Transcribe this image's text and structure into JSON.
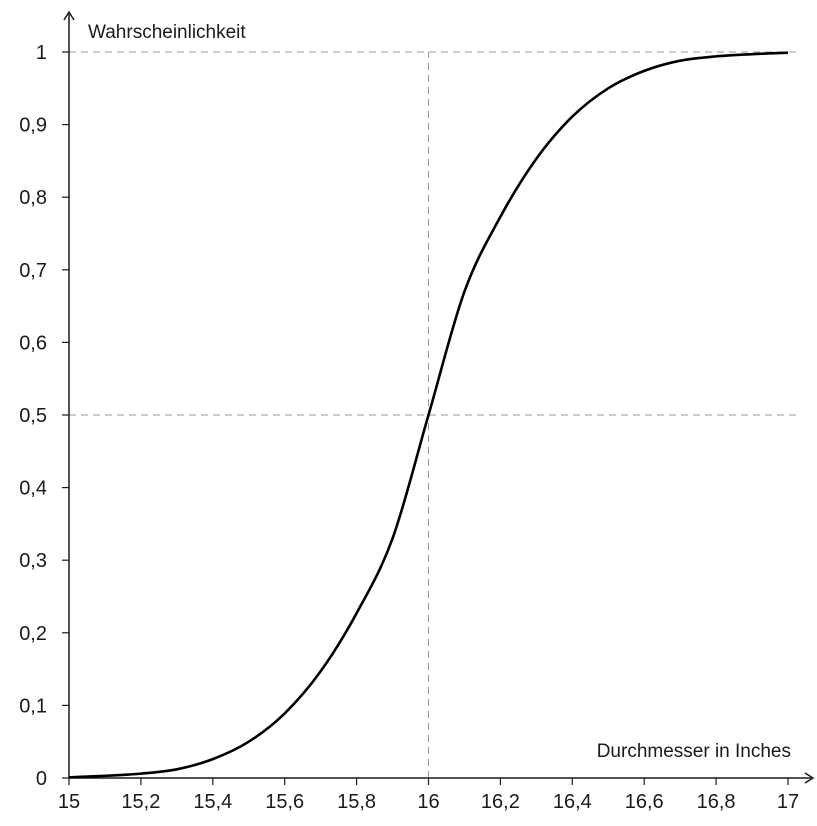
{
  "chart_data": {
    "type": "line",
    "title": "",
    "xlabel": "Durchmesser in Inches",
    "ylabel": "Wahrscheinlichkeit",
    "xlim": [
      15,
      17
    ],
    "ylim": [
      0,
      1
    ],
    "x_ticks": [
      15,
      15.2,
      15.4,
      15.6,
      15.8,
      16,
      16.2,
      16.4,
      16.6,
      16.8,
      17
    ],
    "x_tick_labels": [
      "15",
      "15,2",
      "15,4",
      "15,6",
      "15,8",
      "16",
      "16,2",
      "16,4",
      "16,6",
      "16,8",
      "17"
    ],
    "y_ticks": [
      0,
      0.1,
      0.2,
      0.3,
      0.4,
      0.5,
      0.6,
      0.7,
      0.8,
      0.9,
      1
    ],
    "y_tick_labels": [
      "0",
      "0,1",
      "0,2",
      "0,3",
      "0,4",
      "0,5",
      "0,6",
      "0,7",
      "0,8",
      "0,9",
      "1"
    ],
    "reference_lines": [
      {
        "orientation": "horizontal",
        "y": 1
      },
      {
        "orientation": "horizontal",
        "y": 0.5
      },
      {
        "orientation": "vertical",
        "x": 16
      }
    ],
    "grid": false,
    "series": [
      {
        "x": [
          15,
          15.1,
          15.2,
          15.3,
          15.4,
          15.5,
          15.6,
          15.7,
          15.8,
          15.9,
          16,
          16.1,
          16.2,
          16.3,
          16.4,
          16.5,
          16.6,
          16.7,
          16.8,
          16.9,
          17
        ],
        "values": [
          0.001,
          0.003,
          0.006,
          0.012,
          0.026,
          0.05,
          0.089,
          0.147,
          0.227,
          0.33,
          0.5,
          0.67,
          0.773,
          0.853,
          0.911,
          0.95,
          0.974,
          0.988,
          0.994,
          0.997,
          0.999
        ],
        "color": "#000000"
      }
    ]
  }
}
